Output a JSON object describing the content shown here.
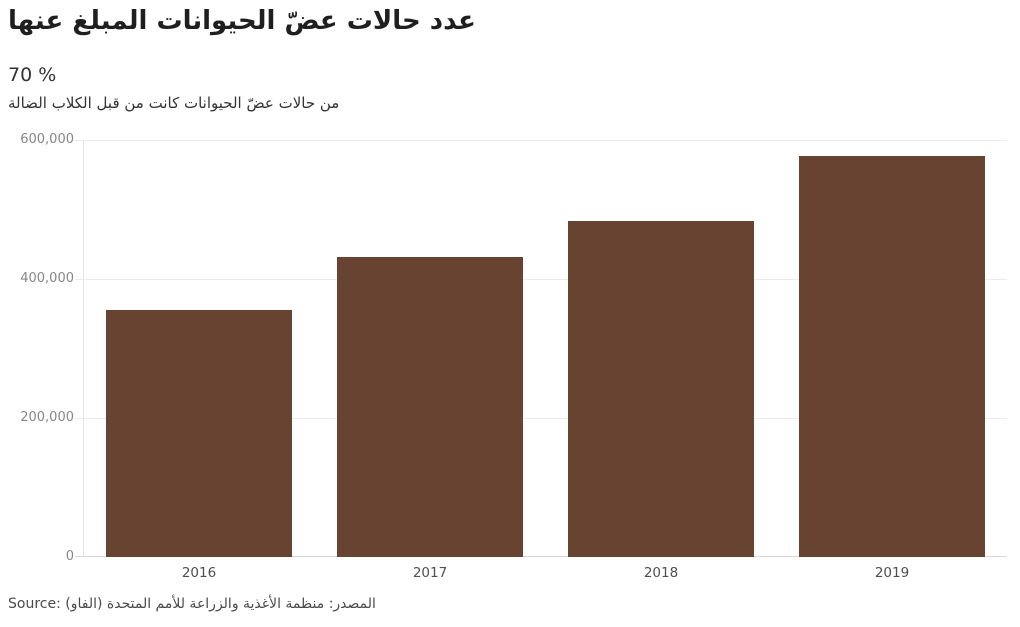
{
  "header": {
    "title": "عدد حالات عضّ الحيوانات المبلغ عنها",
    "big_number": "70 %",
    "description": "من حالات عضّ الحيوانات كانت من قبل الكلاب الضالة"
  },
  "source_note": "Source: المصدر: منظمة الأغذية والزراعة للأمم المتحدة (الفاو)",
  "colors": {
    "bar": "#684331",
    "gridline": "#ebebeb",
    "baseline": "#d8d8d8",
    "axis_line": "#e6e6e6",
    "title_text": "#1f1f1f",
    "body_text": "#333333",
    "ytick_text": "#878787",
    "xtick_text": "#4f4f4f",
    "source_text": "#4a4a4a"
  },
  "chart_data": {
    "type": "bar",
    "title": "عدد حالات عضّ الحيوانات المبلغ عنها",
    "subtitle": "70 % من حالات عضّ الحيوانات كانت من قبل الكلاب الضالة",
    "categories": [
      "2016",
      "2017",
      "2018",
      "2019"
    ],
    "values": [
      355000,
      431000,
      483000,
      577000
    ],
    "xlabel": "",
    "ylabel": "",
    "ylim": [
      0,
      600000
    ],
    "yticks": [
      0,
      200000,
      400000,
      600000
    ],
    "ytick_labels": [
      "0",
      "200,000",
      "400,000",
      "600,000"
    ],
    "grid": true,
    "legend": false,
    "bar_color": "#684331"
  }
}
